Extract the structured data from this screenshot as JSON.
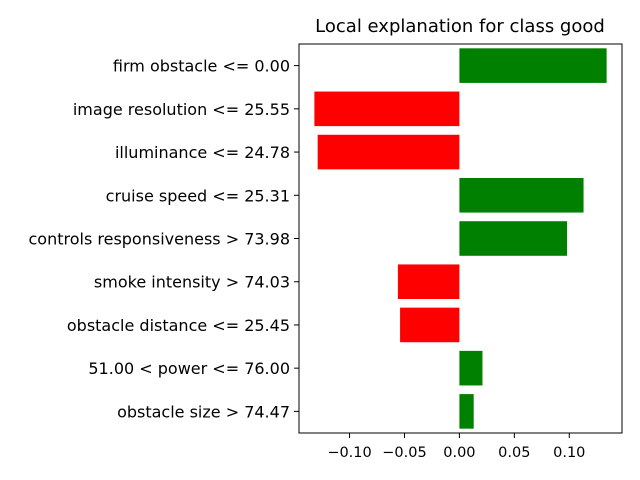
{
  "chart_data": {
    "type": "bar",
    "orientation": "horizontal",
    "title": "Local explanation for class good",
    "xlabel": "",
    "ylabel": "",
    "categories": [
      "firm obstacle <= 0.00",
      "image resolution <= 25.55",
      "illuminance <= 24.78",
      "cruise speed <= 25.31",
      "controls responsiveness > 73.98",
      "smoke intensity > 74.03",
      "obstacle distance <= 25.45",
      "51.00 < power <= 76.00",
      "obstacle size > 74.47"
    ],
    "values": [
      0.134,
      -0.132,
      -0.129,
      0.113,
      0.098,
      -0.056,
      -0.054,
      0.021,
      0.013
    ],
    "xlim": [
      -0.146,
      0.148
    ],
    "xticks": [
      -0.1,
      -0.05,
      0.0,
      0.05,
      0.1
    ],
    "xtick_labels": [
      "−0.10",
      "−0.05",
      "0.00",
      "0.05",
      "0.10"
    ],
    "colors": {
      "positive": "#008000",
      "negative": "#ff0000"
    },
    "grid": false,
    "legend": "none"
  }
}
